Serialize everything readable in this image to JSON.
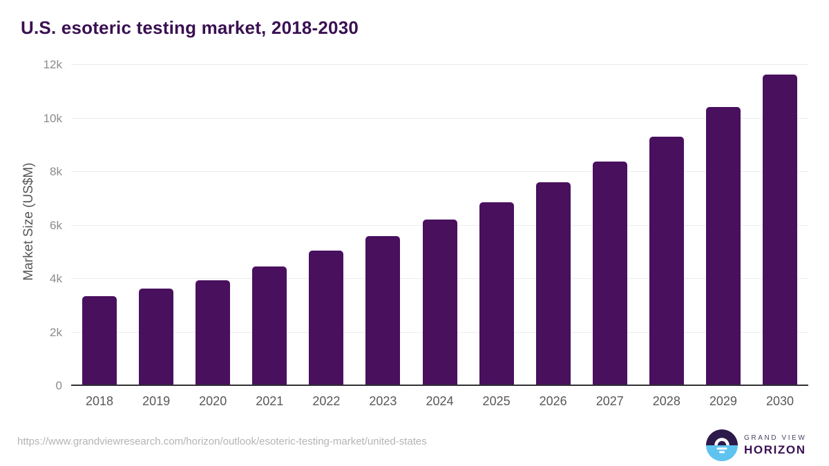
{
  "page": {
    "background": "#FFFFFF"
  },
  "chart_data": {
    "type": "bar",
    "title": "U.S. esoteric testing market, 2018-2030",
    "xlabel": "",
    "ylabel": "Market Size (US$M)",
    "categories": [
      "2018",
      "2019",
      "2020",
      "2021",
      "2022",
      "2023",
      "2024",
      "2025",
      "2026",
      "2027",
      "2028",
      "2029",
      "2030"
    ],
    "values": [
      3350,
      3640,
      3950,
      4460,
      5060,
      5600,
      6220,
      6860,
      7620,
      8380,
      9320,
      10430,
      11630
    ],
    "ylim": [
      0,
      12000
    ],
    "yticks": [
      {
        "value": 0,
        "label": "0"
      },
      {
        "value": 2000,
        "label": "2k"
      },
      {
        "value": 4000,
        "label": "4k"
      },
      {
        "value": 6000,
        "label": "6k"
      },
      {
        "value": 8000,
        "label": "8k"
      },
      {
        "value": 10000,
        "label": "10k"
      },
      {
        "value": 12000,
        "label": "12k"
      }
    ],
    "grid": "horizontal",
    "legend": "none",
    "bar_color": "#49105E"
  },
  "footer": {
    "source_url": "https://www.grandviewresearch.com/horizon/outlook/esoteric-testing-market/united-states"
  },
  "logo": {
    "line1": "GRAND VIEW",
    "line2": "HORIZON",
    "colors": {
      "circle_top": "#2B1A4A",
      "circle_bottom": "#5FC3F0"
    }
  }
}
